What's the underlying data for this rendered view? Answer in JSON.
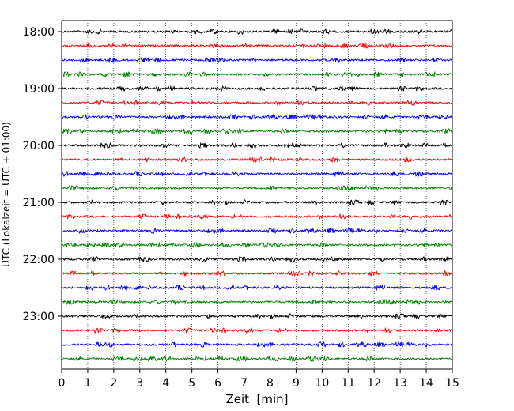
{
  "chart_data": {
    "type": "line",
    "title": "",
    "xlabel": "Zeit  [min]",
    "ylabel": "UTC (Lokalzeit = UTC + 01:00)",
    "xlim": [
      0,
      15
    ],
    "x_ticks": [
      "0",
      "1",
      "2",
      "3",
      "4",
      "5",
      "6",
      "7",
      "8",
      "9",
      "10",
      "11",
      "12",
      "13",
      "14",
      "15"
    ],
    "y_ticks": [
      {
        "label": "18:00",
        "row": 0
      },
      {
        "label": "19:00",
        "row": 4
      },
      {
        "label": "20:00",
        "row": 8
      },
      {
        "label": "21:00",
        "row": 12
      },
      {
        "label": "22:00",
        "row": 16
      },
      {
        "label": "23:00",
        "row": 20
      }
    ],
    "row_interval_min": 15,
    "rows": [
      "18:00",
      "18:15",
      "18:30",
      "18:45",
      "19:00",
      "19:15",
      "19:30",
      "19:45",
      "20:00",
      "20:15",
      "20:30",
      "20:45",
      "21:00",
      "21:15",
      "21:30",
      "21:45",
      "22:00",
      "22:15",
      "22:30",
      "22:45",
      "23:00",
      "23:15",
      "23:30",
      "23:45"
    ],
    "trace_colors": [
      "#000000",
      "#ff0000",
      "#0000ff",
      "#008000"
    ],
    "vertical_grid": "dotted",
    "legend": "none"
  }
}
